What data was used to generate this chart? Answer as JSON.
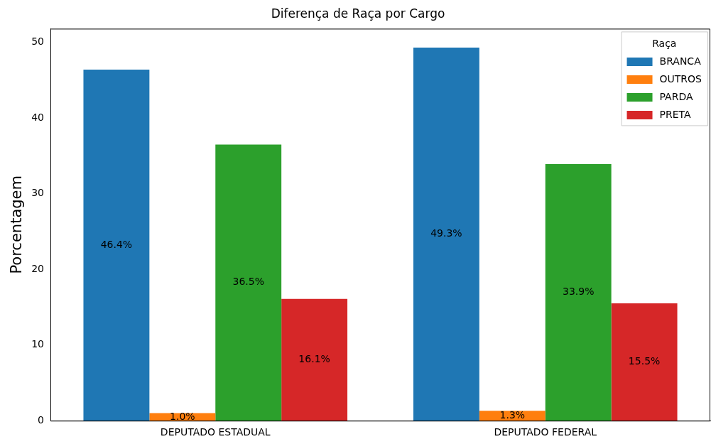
{
  "chart_data": {
    "type": "bar",
    "title": "Diferença de Raça por Cargo",
    "ylabel": "Porcentagem",
    "legend_title": "Raça",
    "categories": [
      "DEPUTADO ESTADUAL",
      "DEPUTADO FEDERAL"
    ],
    "series": [
      {
        "name": "BRANCA",
        "color": "#1f77b4",
        "values": [
          46.4,
          49.3
        ],
        "value_labels": [
          "46.4%",
          "49.3%"
        ]
      },
      {
        "name": "OUTROS",
        "color": "#ff7f0e",
        "values": [
          1.0,
          1.3
        ],
        "value_labels": [
          "1.0%",
          "1.3%"
        ]
      },
      {
        "name": "PARDA",
        "color": "#2ca02c",
        "values": [
          36.5,
          33.9
        ],
        "value_labels": [
          "36.5%",
          "33.9%"
        ]
      },
      {
        "name": "PRETA",
        "color": "#d62728",
        "values": [
          16.1,
          15.5
        ],
        "value_labels": [
          "16.1%",
          "15.5%"
        ]
      }
    ],
    "ylim": [
      0,
      51.8
    ],
    "yticks": [
      0,
      10,
      20,
      30,
      40,
      50
    ],
    "grid": false,
    "legend": "top right"
  }
}
